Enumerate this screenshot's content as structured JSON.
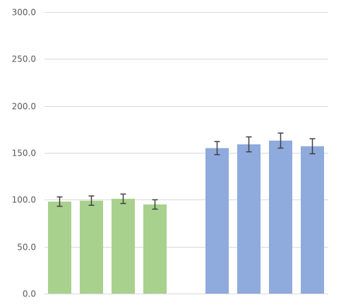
{
  "chart_data": {
    "type": "bar",
    "title": "",
    "xlabel": "",
    "ylabel": "",
    "ylim": [
      0,
      300
    ],
    "yticks": [
      0,
      50,
      100,
      150,
      200,
      250,
      300
    ],
    "ytick_labels": [
      "0.0",
      "50.0",
      "100.0",
      "150.0",
      "200.0",
      "250.0",
      "300.0"
    ],
    "grid": true,
    "legend": "none",
    "groups": [
      {
        "color": "#a9d18e",
        "bars": [
          {
            "value": 98,
            "error": 5
          },
          {
            "value": 99,
            "error": 5
          },
          {
            "value": 101,
            "error": 5
          },
          {
            "value": 95,
            "error": 5
          }
        ]
      },
      {
        "color": "#8faadc",
        "bars": [
          {
            "value": 155,
            "error": 7
          },
          {
            "value": 159,
            "error": 8
          },
          {
            "value": 163,
            "error": 8
          },
          {
            "value": 157,
            "error": 8
          }
        ]
      }
    ]
  }
}
